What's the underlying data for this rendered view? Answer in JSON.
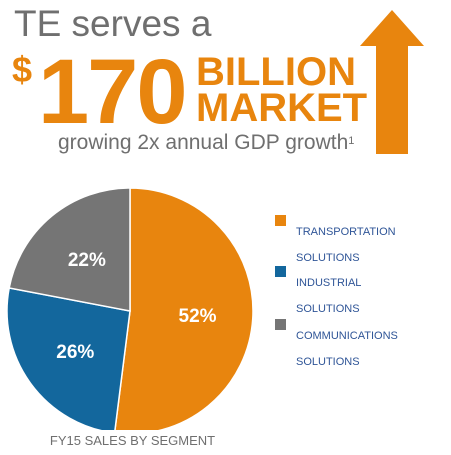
{
  "headline": {
    "line1": "TE serves a",
    "currency": "$",
    "amount": "170",
    "word1": "BILLION",
    "word2": "MARKET",
    "growth": "growing 2x annual GDP growth",
    "footnote": "1"
  },
  "colors": {
    "orange": "#e8850e",
    "blue": "#13679d",
    "gray": "#757575",
    "text_gray": "#6f6f6f",
    "legend_text": "#2f5597"
  },
  "icons": {
    "arrow": "up-arrow-icon"
  },
  "chart_data": {
    "type": "pie",
    "title": "FY15 SALES BY SEGMENT",
    "series": [
      {
        "name": "TRANSPORTATION SOLUTIONS",
        "value": 52,
        "label": "52%",
        "color": "#e8850e"
      },
      {
        "name": "INDUSTRIAL SOLUTIONS",
        "value": 26,
        "label": "26%",
        "color": "#13679d"
      },
      {
        "name": "COMMUNICATIONS SOLUTIONS",
        "value": 22,
        "label": "22%",
        "color": "#757575"
      }
    ],
    "legend_position": "right"
  },
  "legend": [
    {
      "line1": "TRANSPORTATION",
      "line2": "SOLUTIONS"
    },
    {
      "line1": "INDUSTRIAL",
      "line2": "SOLUTIONS"
    },
    {
      "line1": "COMMUNICATIONS",
      "line2": "SOLUTIONS"
    }
  ]
}
